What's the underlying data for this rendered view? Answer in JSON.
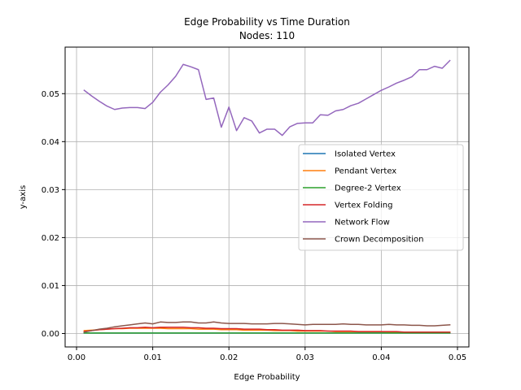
{
  "chart_data": {
    "type": "line",
    "title": "Edge Probability vs Time Duration",
    "subtitle": "Nodes: 110",
    "xlabel": "Edge Probability",
    "ylabel": "y-axis",
    "xlim": [
      -0.0015,
      0.0515
    ],
    "ylim": [
      -0.0028,
      0.0597
    ],
    "grid": true,
    "legend_position": "center-right",
    "xticks": [
      {
        "value": 0.0,
        "label": "0.00"
      },
      {
        "value": 0.01,
        "label": "0.01"
      },
      {
        "value": 0.02,
        "label": "0.02"
      },
      {
        "value": 0.03,
        "label": "0.03"
      },
      {
        "value": 0.04,
        "label": "0.04"
      },
      {
        "value": 0.05,
        "label": "0.05"
      }
    ],
    "yticks": [
      {
        "value": 0.0,
        "label": "0.00"
      },
      {
        "value": 0.01,
        "label": "0.01"
      },
      {
        "value": 0.02,
        "label": "0.02"
      },
      {
        "value": 0.03,
        "label": "0.03"
      },
      {
        "value": 0.04,
        "label": "0.04"
      },
      {
        "value": 0.05,
        "label": "0.05"
      }
    ],
    "x": [
      0.001,
      0.002,
      0.003,
      0.004,
      0.005,
      0.006,
      0.007,
      0.008,
      0.009,
      0.01,
      0.011,
      0.012,
      0.013,
      0.014,
      0.015,
      0.016,
      0.017,
      0.018,
      0.019,
      0.02,
      0.021,
      0.022,
      0.023,
      0.024,
      0.025,
      0.026,
      0.027,
      0.028,
      0.029,
      0.03,
      0.031,
      0.032,
      0.033,
      0.034,
      0.035,
      0.036,
      0.037,
      0.038,
      0.039,
      0.04,
      0.041,
      0.042,
      0.043,
      0.044,
      0.045,
      0.046,
      0.047,
      0.048,
      0.049
    ],
    "series": [
      {
        "name": "Isolated Vertex",
        "color": "#1f77b4",
        "values": [
          0.0001,
          0.0001,
          0.0001,
          0.0001,
          0.0001,
          0.0001,
          0.0001,
          0.0001,
          0.0001,
          0.0001,
          0.0001,
          0.0001,
          0.0001,
          0.0001,
          0.0001,
          0.0001,
          0.0001,
          0.0001,
          0.0001,
          0.0001,
          0.0001,
          0.0001,
          0.0001,
          0.0001,
          0.0001,
          0.0001,
          0.0001,
          0.0001,
          0.0001,
          0.0001,
          0.0001,
          0.0001,
          0.0001,
          0.0001,
          0.0001,
          0.0001,
          0.0001,
          0.0001,
          0.0001,
          0.0001,
          0.0001,
          0.0001,
          0.0001,
          0.0001,
          0.0001,
          0.0001,
          0.0001,
          0.0001,
          0.0001
        ]
      },
      {
        "name": "Pendant Vertex",
        "color": "#ff7f0e",
        "values": [
          0.0006,
          0.0007,
          0.0008,
          0.0009,
          0.001,
          0.001,
          0.0011,
          0.0011,
          0.0011,
          0.0011,
          0.0011,
          0.001,
          0.001,
          0.001,
          0.001,
          0.0009,
          0.0009,
          0.0009,
          0.0008,
          0.0008,
          0.0008,
          0.0007,
          0.0007,
          0.0007,
          0.0007,
          0.0006,
          0.0006,
          0.0006,
          0.0005,
          0.0005,
          0.0005,
          0.0005,
          0.0005,
          0.0004,
          0.0004,
          0.0004,
          0.0004,
          0.0004,
          0.0004,
          0.0004,
          0.0003,
          0.0003,
          0.0003,
          0.0003,
          0.0003,
          0.0003,
          0.0003,
          0.0003,
          0.0003
        ]
      },
      {
        "name": "Degree-2 Vertex",
        "color": "#2ca02c",
        "values": [
          0.0001,
          0.0001,
          0.0001,
          0.0001,
          0.0001,
          0.0001,
          0.0001,
          0.0001,
          0.0001,
          0.0001,
          0.0001,
          0.0001,
          0.0001,
          0.0001,
          0.0001,
          0.0001,
          0.0001,
          0.0001,
          0.0001,
          0.0001,
          0.0001,
          0.0001,
          0.0001,
          0.0001,
          0.0001,
          0.0001,
          0.0001,
          0.0001,
          0.0001,
          0.0001,
          0.0001,
          0.0001,
          0.0001,
          0.0001,
          0.0001,
          0.0001,
          0.0001,
          0.0001,
          0.0001,
          0.0001,
          0.0001,
          0.0001,
          0.0001,
          0.0001,
          0.0001,
          0.0001,
          0.0001,
          0.0001,
          0.0001
        ]
      },
      {
        "name": "Vertex Folding",
        "color": "#d62728",
        "values": [
          0.0004,
          0.0006,
          0.0008,
          0.0009,
          0.001,
          0.0011,
          0.0012,
          0.0012,
          0.0013,
          0.0012,
          0.0013,
          0.0013,
          0.0013,
          0.0013,
          0.0012,
          0.0012,
          0.0011,
          0.0011,
          0.001,
          0.001,
          0.001,
          0.0009,
          0.0009,
          0.0009,
          0.0008,
          0.0008,
          0.0007,
          0.0007,
          0.0007,
          0.0006,
          0.0006,
          0.0006,
          0.0005,
          0.0005,
          0.0005,
          0.0005,
          0.0004,
          0.0004,
          0.0004,
          0.0004,
          0.0004,
          0.0004,
          0.0003,
          0.0003,
          0.0003,
          0.0003,
          0.0003,
          0.0003,
          0.0003
        ]
      },
      {
        "name": "Network Flow",
        "color": "#9467bd",
        "values": [
          0.0507,
          0.0495,
          0.0484,
          0.0474,
          0.0467,
          0.047,
          0.0471,
          0.0471,
          0.0469,
          0.0482,
          0.0503,
          0.0518,
          0.0536,
          0.0561,
          0.0556,
          0.055,
          0.0488,
          0.0491,
          0.043,
          0.0472,
          0.0423,
          0.045,
          0.0443,
          0.0418,
          0.0426,
          0.0426,
          0.0413,
          0.0431,
          0.0438,
          0.0439,
          0.0439,
          0.0456,
          0.0455,
          0.0464,
          0.0467,
          0.0475,
          0.048,
          0.0489,
          0.0498,
          0.0507,
          0.0514,
          0.0522,
          0.0528,
          0.0535,
          0.055,
          0.055,
          0.0557,
          0.0553,
          0.0569
        ]
      },
      {
        "name": "Crown Decomposition",
        "color": "#8c564b",
        "values": [
          0.0003,
          0.0006,
          0.0009,
          0.0011,
          0.0014,
          0.0016,
          0.0018,
          0.002,
          0.0022,
          0.002,
          0.0024,
          0.0023,
          0.0023,
          0.0024,
          0.0024,
          0.0022,
          0.0022,
          0.0024,
          0.0022,
          0.0021,
          0.0021,
          0.0021,
          0.002,
          0.002,
          0.002,
          0.0021,
          0.0021,
          0.002,
          0.0019,
          0.0018,
          0.0019,
          0.0019,
          0.0019,
          0.0019,
          0.002,
          0.0019,
          0.0019,
          0.0018,
          0.0018,
          0.0018,
          0.0019,
          0.0018,
          0.0018,
          0.0017,
          0.0017,
          0.0016,
          0.0016,
          0.0017,
          0.0018
        ]
      }
    ]
  }
}
